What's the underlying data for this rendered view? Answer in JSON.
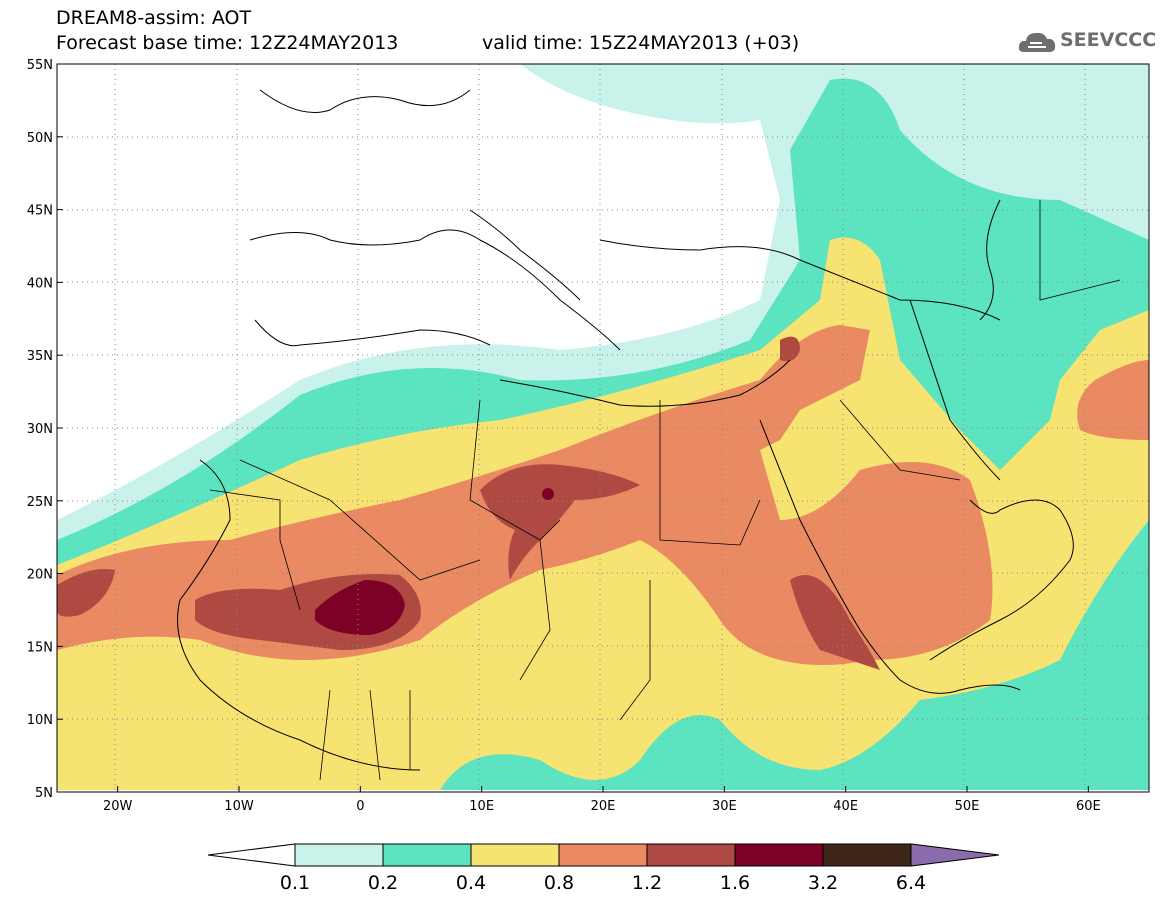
{
  "header": {
    "title": "DREAM8-assim: AOT",
    "base_time": "Forecast base time: 12Z24MAY2013",
    "valid_time": "valid time: 15Z24MAY2013 (+03)"
  },
  "logo": {
    "text": "SEEVCCC",
    "icon": "cloud-icon"
  },
  "map": {
    "variable": "AOT",
    "lon_range": [
      -25,
      65
    ],
    "lat_range": [
      5,
      55
    ],
    "lon_ticks": [
      "20W",
      "10W",
      "0",
      "10E",
      "20E",
      "30E",
      "40E",
      "50E",
      "60E"
    ],
    "lat_ticks": [
      "55N",
      "50N",
      "45N",
      "40N",
      "35N",
      "30N",
      "25N",
      "20N",
      "15N",
      "10N",
      "5N"
    ],
    "grid": "dotted"
  },
  "colorbar": {
    "labels": [
      "0.1",
      "0.2",
      "0.4",
      "0.8",
      "1.2",
      "1.6",
      "3.2",
      "6.4"
    ],
    "colors": [
      "#c8f2ea",
      "#5ce3bf",
      "#f7e372",
      "#ea8a62",
      "#ae4a42",
      "#7d0027",
      "#3e2618",
      "#8b6bac"
    ]
  }
}
